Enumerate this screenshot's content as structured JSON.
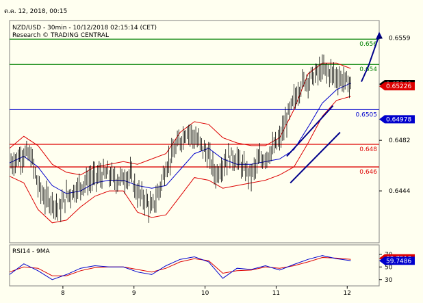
{
  "header": {
    "timestamp": "ต.ค. 12, 2018, 00:15"
  },
  "chart_data": {
    "type": "line",
    "title": "NZD/USD - 30min - 10/12/2018 02:15:14 (CET)",
    "subtitle": "Research © TRADING CENTRAL",
    "price_axis": {
      "ticks": [
        "0.6559",
        "0.6482",
        "0.6444"
      ],
      "ylim": [
        0.6405,
        0.6572
      ]
    },
    "x_ticks": [
      "8",
      "9",
      "10",
      "11",
      "12"
    ],
    "x_tick_positions": [
      0.75,
      1.75,
      2.75,
      3.75,
      4.75
    ],
    "xlim": [
      0,
      5.2
    ],
    "levels": [
      {
        "label": "0.656",
        "value": 0.6558,
        "color": "#008000"
      },
      {
        "label": "0.654",
        "value": 0.6539,
        "color": "#008000"
      },
      {
        "label": "0.6505",
        "value": 0.6505,
        "color": "#0000cc"
      },
      {
        "label": "0.648",
        "value": 0.6479,
        "color": "#dd0000"
      },
      {
        "label": "0.646",
        "value": 0.6462,
        "color": "#dd0000"
      }
    ],
    "price_tags": [
      {
        "label": "0.65242",
        "value": 0.65242,
        "bg": "#000000",
        "fg": "#ffffff"
      },
      {
        "label": "0.65226",
        "value": 0.65226,
        "bg": "#dd0000",
        "fg": "#ffffff"
      },
      {
        "label": "0.64978",
        "value": 0.64978,
        "bg": "#0000cc",
        "fg": "#ffffff"
      }
    ],
    "close_series": {
      "x": [
        0,
        0.1,
        0.2,
        0.3,
        0.4,
        0.5,
        0.6,
        0.7,
        0.8,
        0.9,
        1.0,
        1.1,
        1.2,
        1.3,
        1.4,
        1.5,
        1.6,
        1.7,
        1.8,
        1.9,
        2.0,
        2.1,
        2.2,
        2.3,
        2.4,
        2.5,
        2.6,
        2.7,
        2.8,
        2.9,
        3.0,
        3.1,
        3.2,
        3.3,
        3.4,
        3.5,
        3.6,
        3.7,
        3.8,
        3.9,
        4.0,
        4.1,
        4.2,
        4.3,
        4.4,
        4.5,
        4.6,
        4.7,
        4.8
      ],
      "y": [
        0.6464,
        0.6468,
        0.6472,
        0.647,
        0.6448,
        0.6438,
        0.6436,
        0.643,
        0.644,
        0.6444,
        0.6448,
        0.6452,
        0.6454,
        0.6456,
        0.6456,
        0.6452,
        0.6454,
        0.6456,
        0.6442,
        0.6438,
        0.643,
        0.6444,
        0.6462,
        0.6472,
        0.6482,
        0.649,
        0.6484,
        0.6478,
        0.647,
        0.6456,
        0.6464,
        0.647,
        0.6468,
        0.646,
        0.6456,
        0.6466,
        0.647,
        0.6475,
        0.6482,
        0.6498,
        0.6512,
        0.6524,
        0.6528,
        0.6531,
        0.6535,
        0.6533,
        0.653,
        0.6527,
        0.6524
      ]
    },
    "bollinger_upper": {
      "x": [
        0,
        0.2,
        0.4,
        0.6,
        0.8,
        1.0,
        1.2,
        1.4,
        1.6,
        1.8,
        2.0,
        2.2,
        2.4,
        2.6,
        2.8,
        3.0,
        3.2,
        3.4,
        3.6,
        3.8,
        4.0,
        4.2,
        4.4,
        4.6,
        4.8
      ],
      "y": [
        0.6476,
        0.6485,
        0.6478,
        0.6464,
        0.6458,
        0.6456,
        0.6462,
        0.6464,
        0.6466,
        0.6464,
        0.6468,
        0.6472,
        0.6488,
        0.6496,
        0.6494,
        0.6484,
        0.648,
        0.6478,
        0.6478,
        0.6484,
        0.6505,
        0.6532,
        0.654,
        0.654,
        0.6536
      ]
    },
    "bollinger_lower": {
      "x": [
        0,
        0.2,
        0.4,
        0.6,
        0.8,
        1.0,
        1.2,
        1.4,
        1.6,
        1.8,
        2.0,
        2.2,
        2.4,
        2.6,
        2.8,
        3.0,
        3.2,
        3.4,
        3.6,
        3.8,
        4.0,
        4.2,
        4.4,
        4.6,
        4.8
      ],
      "y": [
        0.6455,
        0.645,
        0.643,
        0.642,
        0.6422,
        0.6432,
        0.644,
        0.6444,
        0.6444,
        0.6428,
        0.6424,
        0.6426,
        0.644,
        0.6454,
        0.6452,
        0.6446,
        0.6448,
        0.645,
        0.6452,
        0.6456,
        0.6462,
        0.648,
        0.65,
        0.6512,
        0.6515
      ]
    },
    "ma_line": {
      "x": [
        0,
        0.2,
        0.4,
        0.6,
        0.8,
        1.0,
        1.2,
        1.4,
        1.6,
        1.8,
        2.0,
        2.2,
        2.4,
        2.6,
        2.8,
        3.0,
        3.2,
        3.4,
        3.6,
        3.8,
        4.0,
        4.2,
        4.4,
        4.6,
        4.8
      ],
      "y": [
        0.6465,
        0.647,
        0.6462,
        0.6448,
        0.6442,
        0.6444,
        0.645,
        0.6452,
        0.6452,
        0.6448,
        0.6446,
        0.6448,
        0.646,
        0.6472,
        0.6476,
        0.6468,
        0.6464,
        0.6464,
        0.6466,
        0.6468,
        0.6475,
        0.6492,
        0.651,
        0.652,
        0.6525
      ]
    },
    "channel": {
      "upper": {
        "x": [
          3.9,
          4.55
        ],
        "y": [
          0.647,
          0.6508
        ]
      },
      "lower": {
        "x": [
          3.95,
          4.65
        ],
        "y": [
          0.645,
          0.6488
        ]
      }
    },
    "projection": {
      "x": [
        4.95,
        5.05,
        5.2
      ],
      "y": [
        0.6526,
        0.6538,
        0.6561
      ]
    },
    "rsi": {
      "label": "RSI14 - 9MA",
      "ticks": [
        "70",
        "50",
        "30"
      ],
      "ylim": [
        20,
        85
      ],
      "tags": [
        {
          "label": "63.7518",
          "value": 63.7518,
          "bg": "#dd0000",
          "fg": "#ffffff"
        },
        {
          "label": "59.7486",
          "value": 59.7486,
          "bg": "#0000cc",
          "fg": "#ffffff"
        }
      ],
      "x": [
        0,
        0.2,
        0.4,
        0.6,
        0.8,
        1.0,
        1.2,
        1.4,
        1.6,
        1.8,
        2.0,
        2.2,
        2.4,
        2.6,
        2.8,
        3.0,
        3.2,
        3.4,
        3.6,
        3.8,
        4.0,
        4.2,
        4.4,
        4.6,
        4.8
      ],
      "rsi_values": [
        38,
        55,
        44,
        30,
        38,
        48,
        52,
        50,
        50,
        42,
        38,
        52,
        62,
        66,
        58,
        32,
        48,
        46,
        52,
        45,
        54,
        62,
        68,
        63,
        60
      ],
      "ma_values": [
        42,
        50,
        48,
        36,
        36,
        44,
        49,
        50,
        50,
        46,
        42,
        48,
        58,
        63,
        60,
        40,
        44,
        45,
        50,
        48,
        52,
        58,
        65,
        64,
        62
      ]
    }
  }
}
